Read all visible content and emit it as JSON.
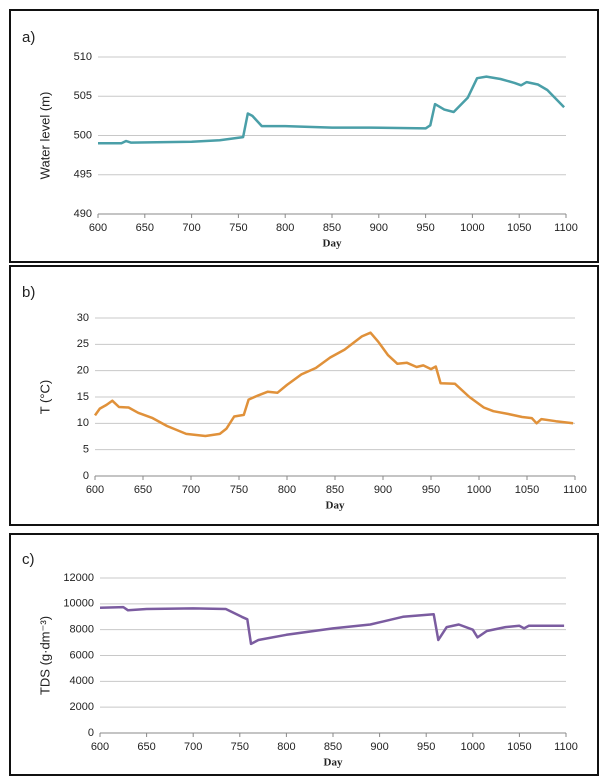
{
  "chart_data": [
    {
      "type": "line",
      "panel_label": "a)",
      "xlabel": "Day",
      "ylabel": "Water level (m)",
      "xlim": [
        600,
        1100
      ],
      "xticks": [
        600,
        650,
        700,
        750,
        800,
        850,
        900,
        950,
        1000,
        1050,
        1100
      ],
      "ylim": [
        490,
        510
      ],
      "yticks": [
        490,
        495,
        500,
        505,
        510
      ],
      "grid": true,
      "series": [
        {
          "color": "#4a9fa8",
          "x": [
            600,
            625,
            630,
            635,
            700,
            730,
            755,
            760,
            765,
            775,
            800,
            850,
            890,
            950,
            955,
            960,
            970,
            980,
            995,
            1005,
            1015,
            1030,
            1045,
            1052,
            1058,
            1070,
            1080,
            1098
          ],
          "values": [
            499,
            499,
            499.3,
            499.1,
            499.2,
            499.4,
            499.8,
            502.8,
            502.5,
            501.2,
            501.2,
            501,
            501,
            500.9,
            501.3,
            504,
            503.3,
            503,
            504.8,
            507.3,
            507.5,
            507.2,
            506.7,
            506.4,
            506.8,
            506.5,
            505.8,
            503.6
          ]
        }
      ]
    },
    {
      "type": "line",
      "panel_label": "b)",
      "xlabel": "Day",
      "ylabel": "T (°C)",
      "xlim": [
        600,
        1100
      ],
      "xticks": [
        600,
        650,
        700,
        750,
        800,
        850,
        900,
        950,
        1000,
        1050,
        1100
      ],
      "ylim": [
        0,
        30
      ],
      "yticks": [
        0,
        5,
        10,
        15,
        20,
        25,
        30
      ],
      "grid": true,
      "series": [
        {
          "color": "#e0913a",
          "x": [
            600,
            605,
            612,
            618,
            625,
            635,
            645,
            660,
            675,
            695,
            715,
            730,
            737,
            745,
            755,
            760,
            770,
            780,
            790,
            800,
            815,
            830,
            845,
            860,
            870,
            878,
            887,
            895,
            905,
            915,
            925,
            935,
            942,
            950,
            955,
            960,
            975,
            990,
            1005,
            1015,
            1030,
            1045,
            1055,
            1060,
            1065,
            1080,
            1098
          ],
          "values": [
            11.5,
            12.8,
            13.5,
            14.3,
            13.1,
            13,
            12,
            11,
            9.5,
            8,
            7.6,
            8,
            9,
            11.3,
            11.6,
            14.5,
            15.3,
            16,
            15.8,
            17.3,
            19.3,
            20.5,
            22.5,
            24,
            25.4,
            26.5,
            27.2,
            25.5,
            23,
            21.3,
            21.5,
            20.7,
            21,
            20.3,
            20.8,
            17.6,
            17.5,
            15,
            13,
            12.3,
            11.8,
            11.2,
            11,
            10,
            10.8,
            10.4,
            10
          ]
        }
      ]
    },
    {
      "type": "line",
      "panel_label": "c)",
      "xlabel": "Day",
      "ylabel": "TDS (g·dm⁻³)",
      "xlim": [
        600,
        1100
      ],
      "xticks": [
        600,
        650,
        700,
        750,
        800,
        850,
        900,
        950,
        1000,
        1050,
        1100
      ],
      "ylim": [
        0,
        12000
      ],
      "yticks": [
        0,
        2000,
        4000,
        6000,
        8000,
        10000,
        12000
      ],
      "grid": true,
      "series": [
        {
          "color": "#7b5ca0",
          "x": [
            600,
            625,
            630,
            650,
            700,
            735,
            752,
            758,
            762,
            770,
            800,
            850,
            890,
            925,
            958,
            963,
            972,
            985,
            1000,
            1005,
            1015,
            1035,
            1050,
            1055,
            1060,
            1075,
            1098
          ],
          "values": [
            9700,
            9750,
            9500,
            9600,
            9650,
            9600,
            9000,
            8800,
            6900,
            7200,
            7600,
            8100,
            8400,
            9000,
            9200,
            7200,
            8200,
            8400,
            8000,
            7400,
            7900,
            8200,
            8300,
            8100,
            8300,
            8300,
            8300
          ]
        }
      ]
    }
  ]
}
